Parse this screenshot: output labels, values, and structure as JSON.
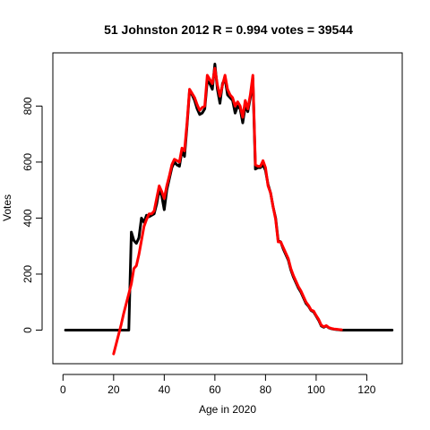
{
  "chart_data": {
    "type": "line",
    "title": "51 Johnston 2012 R = 0.994 votes = 39544",
    "xlabel": "Age in 2020",
    "ylabel": "Votes",
    "xlim": [
      -4,
      134
    ],
    "ylim": [
      -120,
      990
    ],
    "x_ticks": [
      0,
      20,
      40,
      60,
      80,
      100,
      120
    ],
    "y_ticks": [
      0,
      200,
      400,
      600,
      800
    ],
    "grid": false,
    "legend": "none",
    "series": [
      {
        "color": "#000000",
        "points": [
          [
            1,
            0
          ],
          [
            26,
            0
          ],
          [
            27,
            350
          ],
          [
            28,
            320
          ],
          [
            29,
            310
          ],
          [
            30,
            330
          ],
          [
            31,
            400
          ],
          [
            32,
            385
          ],
          [
            33,
            410
          ],
          [
            34,
            405
          ],
          [
            35,
            410
          ],
          [
            36,
            415
          ],
          [
            37,
            450
          ],
          [
            38,
            500
          ],
          [
            39,
            480
          ],
          [
            40,
            430
          ],
          [
            41,
            500
          ],
          [
            42,
            540
          ],
          [
            43,
            580
          ],
          [
            44,
            600
          ],
          [
            45,
            590
          ],
          [
            46,
            585
          ],
          [
            47,
            640
          ],
          [
            48,
            620
          ],
          [
            49,
            730
          ],
          [
            50,
            855
          ],
          [
            51,
            840
          ],
          [
            52,
            820
          ],
          [
            53,
            790
          ],
          [
            54,
            770
          ],
          [
            55,
            775
          ],
          [
            56,
            790
          ],
          [
            57,
            890
          ],
          [
            58,
            880
          ],
          [
            59,
            860
          ],
          [
            60,
            950
          ],
          [
            61,
            860
          ],
          [
            62,
            810
          ],
          [
            63,
            880
          ],
          [
            64,
            900
          ],
          [
            65,
            840
          ],
          [
            66,
            830
          ],
          [
            67,
            820
          ],
          [
            68,
            775
          ],
          [
            69,
            800
          ],
          [
            70,
            790
          ],
          [
            71,
            740
          ],
          [
            72,
            800
          ],
          [
            73,
            780
          ],
          [
            74,
            830
          ],
          [
            75,
            900
          ],
          [
            76,
            575
          ],
          [
            77,
            580
          ],
          [
            78,
            580
          ],
          [
            79,
            590
          ],
          [
            80,
            570
          ],
          [
            81,
            520
          ],
          [
            82,
            490
          ],
          [
            83,
            440
          ],
          [
            84,
            400
          ],
          [
            85,
            320
          ],
          [
            86,
            315
          ],
          [
            87,
            290
          ],
          [
            88,
            270
          ],
          [
            89,
            250
          ],
          [
            90,
            215
          ],
          [
            91,
            190
          ],
          [
            92,
            170
          ],
          [
            93,
            150
          ],
          [
            94,
            135
          ],
          [
            95,
            115
          ],
          [
            96,
            95
          ],
          [
            97,
            85
          ],
          [
            98,
            70
          ],
          [
            99,
            65
          ],
          [
            100,
            50
          ],
          [
            101,
            35
          ],
          [
            102,
            15
          ],
          [
            103,
            10
          ],
          [
            104,
            15
          ],
          [
            105,
            8
          ],
          [
            106,
            5
          ],
          [
            107,
            3
          ],
          [
            108,
            2
          ],
          [
            109,
            1
          ],
          [
            110,
            0
          ],
          [
            130,
            0
          ]
        ]
      },
      {
        "color": "#ff0000",
        "points": [
          [
            20,
            -85
          ],
          [
            21,
            -50
          ],
          [
            22,
            -15
          ],
          [
            23,
            20
          ],
          [
            24,
            60
          ],
          [
            25,
            95
          ],
          [
            26,
            130
          ],
          [
            27,
            165
          ],
          [
            28,
            220
          ],
          [
            29,
            230
          ],
          [
            30,
            270
          ],
          [
            31,
            320
          ],
          [
            32,
            370
          ],
          [
            33,
            395
          ],
          [
            34,
            415
          ],
          [
            35,
            415
          ],
          [
            36,
            425
          ],
          [
            37,
            470
          ],
          [
            38,
            515
          ],
          [
            39,
            495
          ],
          [
            40,
            470
          ],
          [
            41,
            515
          ],
          [
            42,
            550
          ],
          [
            43,
            590
          ],
          [
            44,
            610
          ],
          [
            45,
            605
          ],
          [
            46,
            600
          ],
          [
            47,
            650
          ],
          [
            48,
            640
          ],
          [
            49,
            740
          ],
          [
            50,
            860
          ],
          [
            51,
            845
          ],
          [
            52,
            830
          ],
          [
            53,
            805
          ],
          [
            54,
            785
          ],
          [
            55,
            795
          ],
          [
            56,
            800
          ],
          [
            57,
            910
          ],
          [
            58,
            895
          ],
          [
            59,
            880
          ],
          [
            60,
            935
          ],
          [
            61,
            875
          ],
          [
            62,
            835
          ],
          [
            63,
            875
          ],
          [
            64,
            910
          ],
          [
            65,
            860
          ],
          [
            66,
            840
          ],
          [
            67,
            830
          ],
          [
            68,
            800
          ],
          [
            69,
            815
          ],
          [
            70,
            800
          ],
          [
            71,
            760
          ],
          [
            72,
            820
          ],
          [
            73,
            790
          ],
          [
            74,
            840
          ],
          [
            75,
            910
          ],
          [
            76,
            590
          ],
          [
            77,
            585
          ],
          [
            78,
            585
          ],
          [
            79,
            605
          ],
          [
            80,
            580
          ],
          [
            81,
            515
          ],
          [
            82,
            490
          ],
          [
            83,
            440
          ],
          [
            84,
            395
          ],
          [
            85,
            315
          ],
          [
            86,
            315
          ],
          [
            87,
            295
          ],
          [
            88,
            275
          ],
          [
            89,
            255
          ],
          [
            90,
            220
          ],
          [
            91,
            195
          ],
          [
            92,
            175
          ],
          [
            93,
            155
          ],
          [
            94,
            140
          ],
          [
            95,
            120
          ],
          [
            96,
            100
          ],
          [
            97,
            88
          ],
          [
            98,
            72
          ],
          [
            99,
            68
          ],
          [
            100,
            52
          ],
          [
            101,
            38
          ],
          [
            102,
            18
          ],
          [
            103,
            12
          ],
          [
            104,
            16
          ],
          [
            105,
            9
          ],
          [
            106,
            6
          ],
          [
            107,
            4
          ],
          [
            108,
            3
          ],
          [
            109,
            2
          ],
          [
            110,
            1
          ]
        ]
      }
    ]
  }
}
